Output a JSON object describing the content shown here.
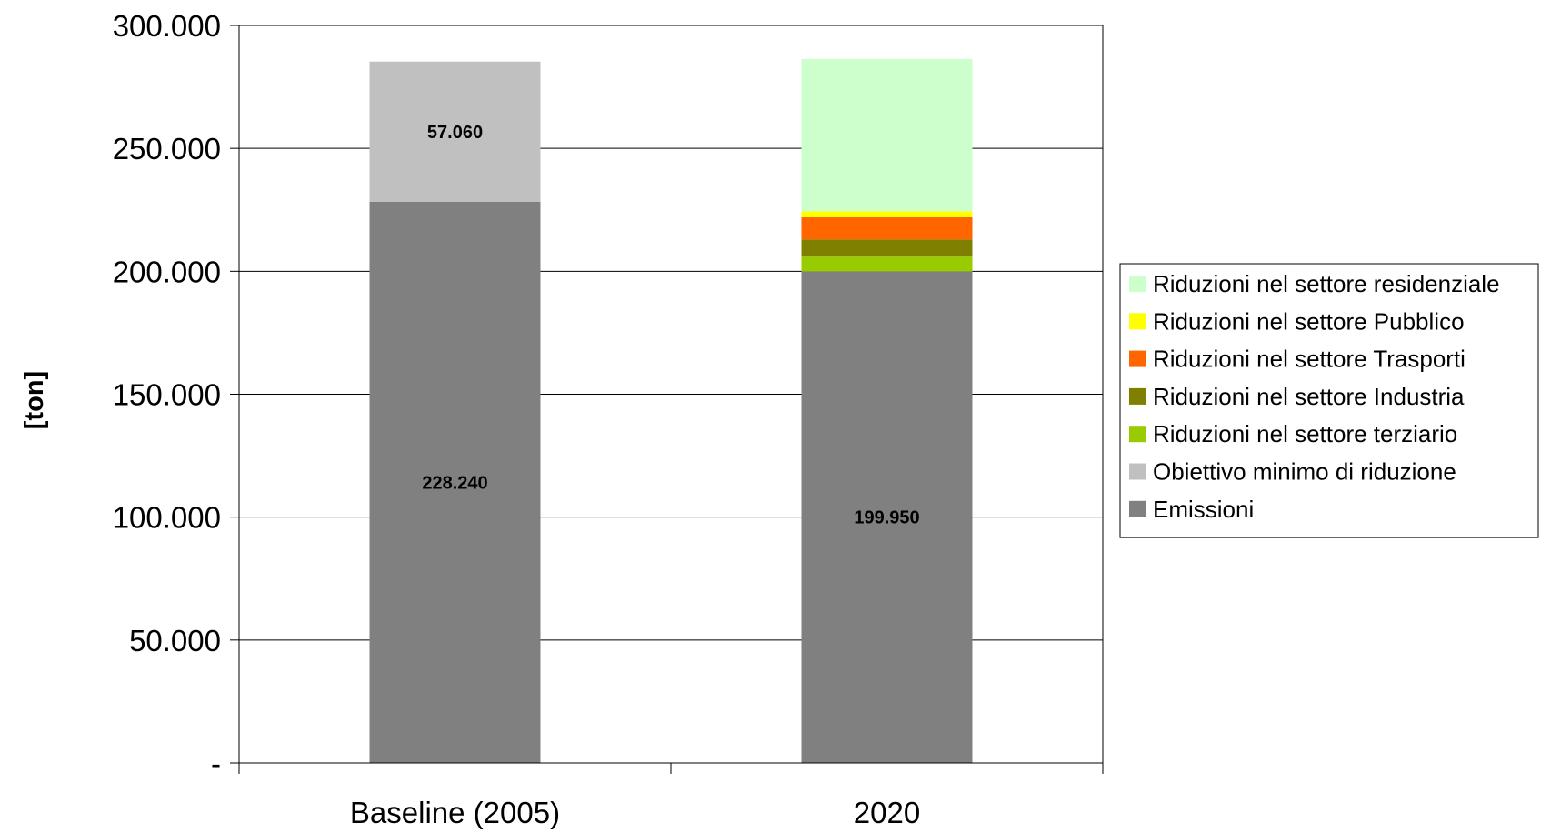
{
  "chart_data": {
    "type": "bar",
    "stacked": true,
    "categories": [
      "Baseline (2005)",
      "2020"
    ],
    "ylabel": "[ton]",
    "ylim": [
      0,
      300000
    ],
    "yticks": [
      {
        "value": 0,
        "label": "-"
      },
      {
        "value": 50000,
        "label": "50.000"
      },
      {
        "value": 100000,
        "label": "100.000"
      },
      {
        "value": 150000,
        "label": "150.000"
      },
      {
        "value": 200000,
        "label": "200.000"
      },
      {
        "value": 250000,
        "label": "250.000"
      },
      {
        "value": 300000,
        "label": "300.000"
      }
    ],
    "grid": true,
    "legend_position": "right",
    "series": [
      {
        "name": "Emissioni",
        "color": "#808080",
        "values": [
          228240,
          199950
        ],
        "labels": [
          "228.240",
          "199.950"
        ]
      },
      {
        "name": "Obiettivo minimo di riduzione",
        "color": "#c0c0c0",
        "values": [
          57060,
          0
        ],
        "labels": [
          "57.060",
          ""
        ]
      },
      {
        "name": "Riduzioni nel settore terziario",
        "color": "#99cc00",
        "values": [
          0,
          6000
        ],
        "labels": [
          "",
          ""
        ]
      },
      {
        "name": "Riduzioni nel settore Industria",
        "color": "#808000",
        "values": [
          0,
          7000
        ],
        "labels": [
          "",
          ""
        ]
      },
      {
        "name": "Riduzioni nel settore Trasporti",
        "color": "#ff6600",
        "values": [
          0,
          9000
        ],
        "labels": [
          "",
          ""
        ]
      },
      {
        "name": "Riduzioni nel settore Pubblico",
        "color": "#ffff00",
        "values": [
          0,
          2500
        ],
        "labels": [
          "",
          ""
        ]
      },
      {
        "name": "Riduzioni nel settore residenziale",
        "color": "#ccffcc",
        "values": [
          0,
          61900
        ],
        "labels": [
          "",
          ""
        ]
      }
    ]
  }
}
